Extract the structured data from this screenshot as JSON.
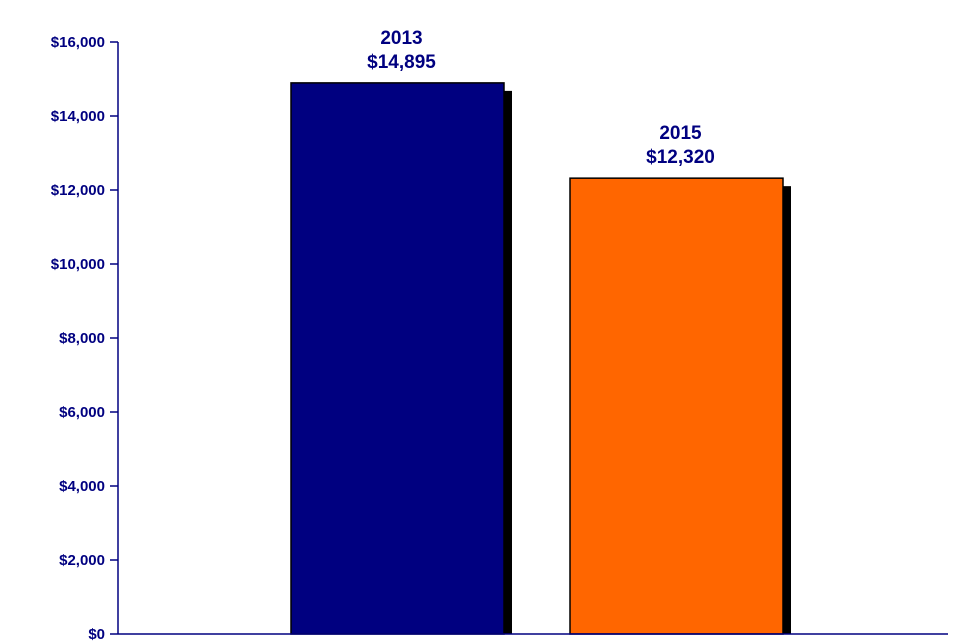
{
  "chart_data": {
    "type": "bar",
    "title": "",
    "xlabel": "",
    "ylabel": "",
    "ylim": [
      0,
      16000
    ],
    "yticks": [
      0,
      2000,
      4000,
      6000,
      8000,
      10000,
      12000,
      14000,
      16000
    ],
    "ytick_labels": [
      "$0",
      "$2,000",
      "$4,000",
      "$6,000",
      "$8,000",
      "$10,000",
      "$12,000",
      "$14,000",
      "$16,000"
    ],
    "grid": false,
    "legend": "none",
    "bars": [
      {
        "category": "2013",
        "value": 14895,
        "value_label": "$14,895",
        "color": "#000080"
      },
      {
        "category": "2015",
        "value": 12320,
        "value_label": "$12,320",
        "color": "#FF6600"
      }
    ],
    "text_color": "#000080",
    "axis_color": "#000080",
    "shadow_color": "#000000"
  }
}
